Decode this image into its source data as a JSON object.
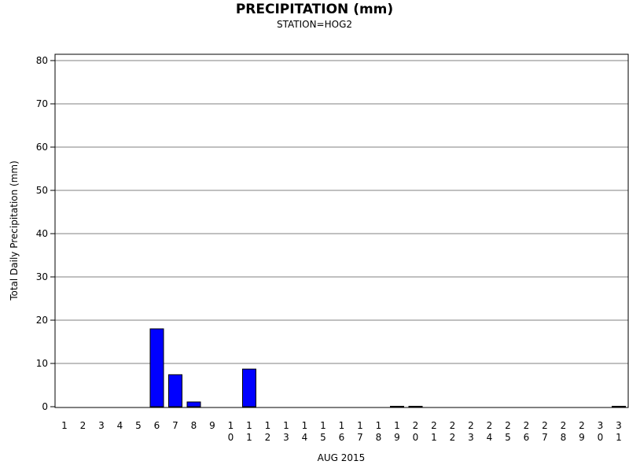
{
  "chart_data": {
    "type": "bar",
    "title": "PRECIPITATION (mm)",
    "subtitle": "STATION=HOG2",
    "xlabel": "AUG 2015",
    "ylabel": "Total Daily Precipitation (mm)",
    "ylim": [
      0,
      80
    ],
    "yticks": [
      0,
      10,
      20,
      30,
      40,
      50,
      60,
      70,
      80
    ],
    "grid": true,
    "categories": [
      "1",
      "2",
      "3",
      "4",
      "5",
      "6",
      "7",
      "8",
      "9",
      "10",
      "11",
      "12",
      "13",
      "14",
      "15",
      "16",
      "17",
      "18",
      "19",
      "20",
      "21",
      "22",
      "23",
      "24",
      "25",
      "26",
      "27",
      "28",
      "29",
      "30",
      "31"
    ],
    "values": [
      0,
      0,
      0,
      0,
      0,
      18,
      7.4,
      1.1,
      0,
      0,
      8.7,
      0,
      0,
      0,
      0,
      0,
      0,
      0,
      0.1,
      0.1,
      0,
      0,
      0,
      0,
      0,
      0,
      0,
      0,
      0,
      0,
      0.1
    ],
    "bar_color": "#0000ff",
    "grid_color": "#808080"
  }
}
